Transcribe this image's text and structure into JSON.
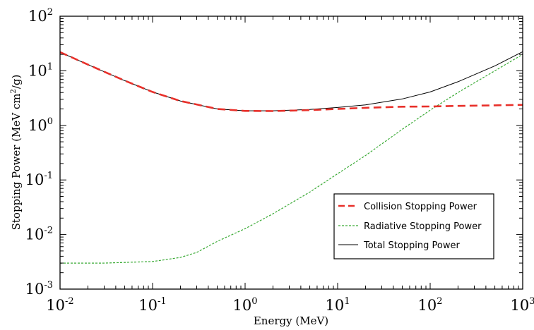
{
  "chart_data": {
    "type": "line",
    "title": "",
    "xlabel": "Energy (MeV)",
    "ylabel": {
      "main": "Stopping Power (MeV cm",
      "sup": "2",
      "tail": "/g)"
    },
    "xscale": "log",
    "yscale": "log",
    "xlim": [
      0.01,
      1000
    ],
    "ylim": [
      0.001,
      100
    ],
    "grid": false,
    "legend_position": "lower-right",
    "x_ticks": [
      {
        "base": "10",
        "exp": "-2",
        "value": 0.01
      },
      {
        "base": "10",
        "exp": "-1",
        "value": 0.1
      },
      {
        "base": "10",
        "exp": "0",
        "value": 1
      },
      {
        "base": "10",
        "exp": "1",
        "value": 10
      },
      {
        "base": "10",
        "exp": "2",
        "value": 100
      },
      {
        "base": "10",
        "exp": "3",
        "value": 1000
      }
    ],
    "y_ticks": [
      {
        "base": "10",
        "exp": "-3",
        "value": 0.001
      },
      {
        "base": "10",
        "exp": "-2",
        "value": 0.01
      },
      {
        "base": "10",
        "exp": "-1",
        "value": 0.1
      },
      {
        "base": "10",
        "exp": "0",
        "value": 1
      },
      {
        "base": "10",
        "exp": "1",
        "value": 10
      },
      {
        "base": "10",
        "exp": "2",
        "value": 100
      }
    ],
    "series": [
      {
        "name": "Collision Stopping Power",
        "color": "#e8302a",
        "style": "dashed",
        "x": [
          0.01,
          0.02,
          0.05,
          0.1,
          0.2,
          0.5,
          1,
          2,
          5,
          10,
          20,
          50,
          100,
          200,
          500,
          1000
        ],
        "y": [
          22,
          13,
          6.6,
          4.1,
          2.8,
          2.0,
          1.84,
          1.83,
          1.9,
          2.0,
          2.1,
          2.2,
          2.22,
          2.27,
          2.33,
          2.38
        ]
      },
      {
        "name": "Radiative Stopping Power",
        "color": "#3aaa35",
        "style": "dashed",
        "x": [
          0.01,
          0.03,
          0.1,
          0.2,
          0.3,
          0.5,
          1,
          2,
          5,
          10,
          20,
          50,
          100,
          200,
          500,
          1000
        ],
        "y": [
          0.003,
          0.003,
          0.0032,
          0.0038,
          0.0047,
          0.0075,
          0.0128,
          0.024,
          0.06,
          0.13,
          0.28,
          0.85,
          1.9,
          4.0,
          10.0,
          20.0
        ]
      },
      {
        "name": "Total Stopping Power",
        "color": "#000000",
        "style": "solid",
        "x": [
          0.01,
          0.02,
          0.05,
          0.1,
          0.2,
          0.5,
          1,
          2,
          5,
          10,
          20,
          50,
          100,
          200,
          500,
          1000
        ],
        "y": [
          22,
          13,
          6.6,
          4.1,
          2.8,
          2.0,
          1.85,
          1.85,
          1.96,
          2.13,
          2.38,
          3.05,
          4.1,
          6.3,
          12.3,
          22.4
        ]
      }
    ]
  }
}
